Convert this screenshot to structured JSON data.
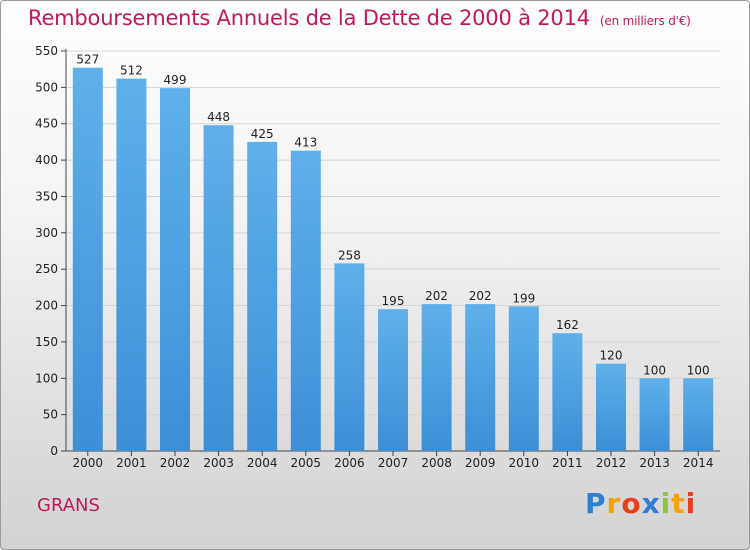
{
  "chart_data": {
    "type": "bar",
    "title": "Remboursements Annuels de la Dette de 2000 à 2014",
    "subtitle": "(en milliers d'€)",
    "categories": [
      "2000",
      "2001",
      "2002",
      "2003",
      "2004",
      "2005",
      "2006",
      "2007",
      "2008",
      "2009",
      "2010",
      "2011",
      "2012",
      "2013",
      "2014"
    ],
    "values": [
      527,
      512,
      499,
      448,
      425,
      413,
      258,
      195,
      202,
      202,
      199,
      162,
      120,
      100,
      100
    ],
    "ylim": [
      0,
      550
    ],
    "yticks": [
      0,
      50,
      100,
      150,
      200,
      250,
      300,
      350,
      400,
      450,
      500,
      550
    ],
    "xlabel": "",
    "ylabel": "",
    "grid": true,
    "bar_color": "#3d8fd6",
    "bar_color_light": "#5fb0ea"
  },
  "place": "GRANS",
  "brand": {
    "name": "Proxiti",
    "letters": [
      {
        "ch": "P",
        "color": "#2b7fd4"
      },
      {
        "ch": "r",
        "color": "#f5a300"
      },
      {
        "ch": "o",
        "color": "#e8401c"
      },
      {
        "ch": "x",
        "color": "#2b7fd4"
      },
      {
        "ch": "i",
        "color": "#8cc63f"
      },
      {
        "ch": "t",
        "color": "#f5a300"
      },
      {
        "ch": "i",
        "color": "#e8401c"
      }
    ]
  }
}
